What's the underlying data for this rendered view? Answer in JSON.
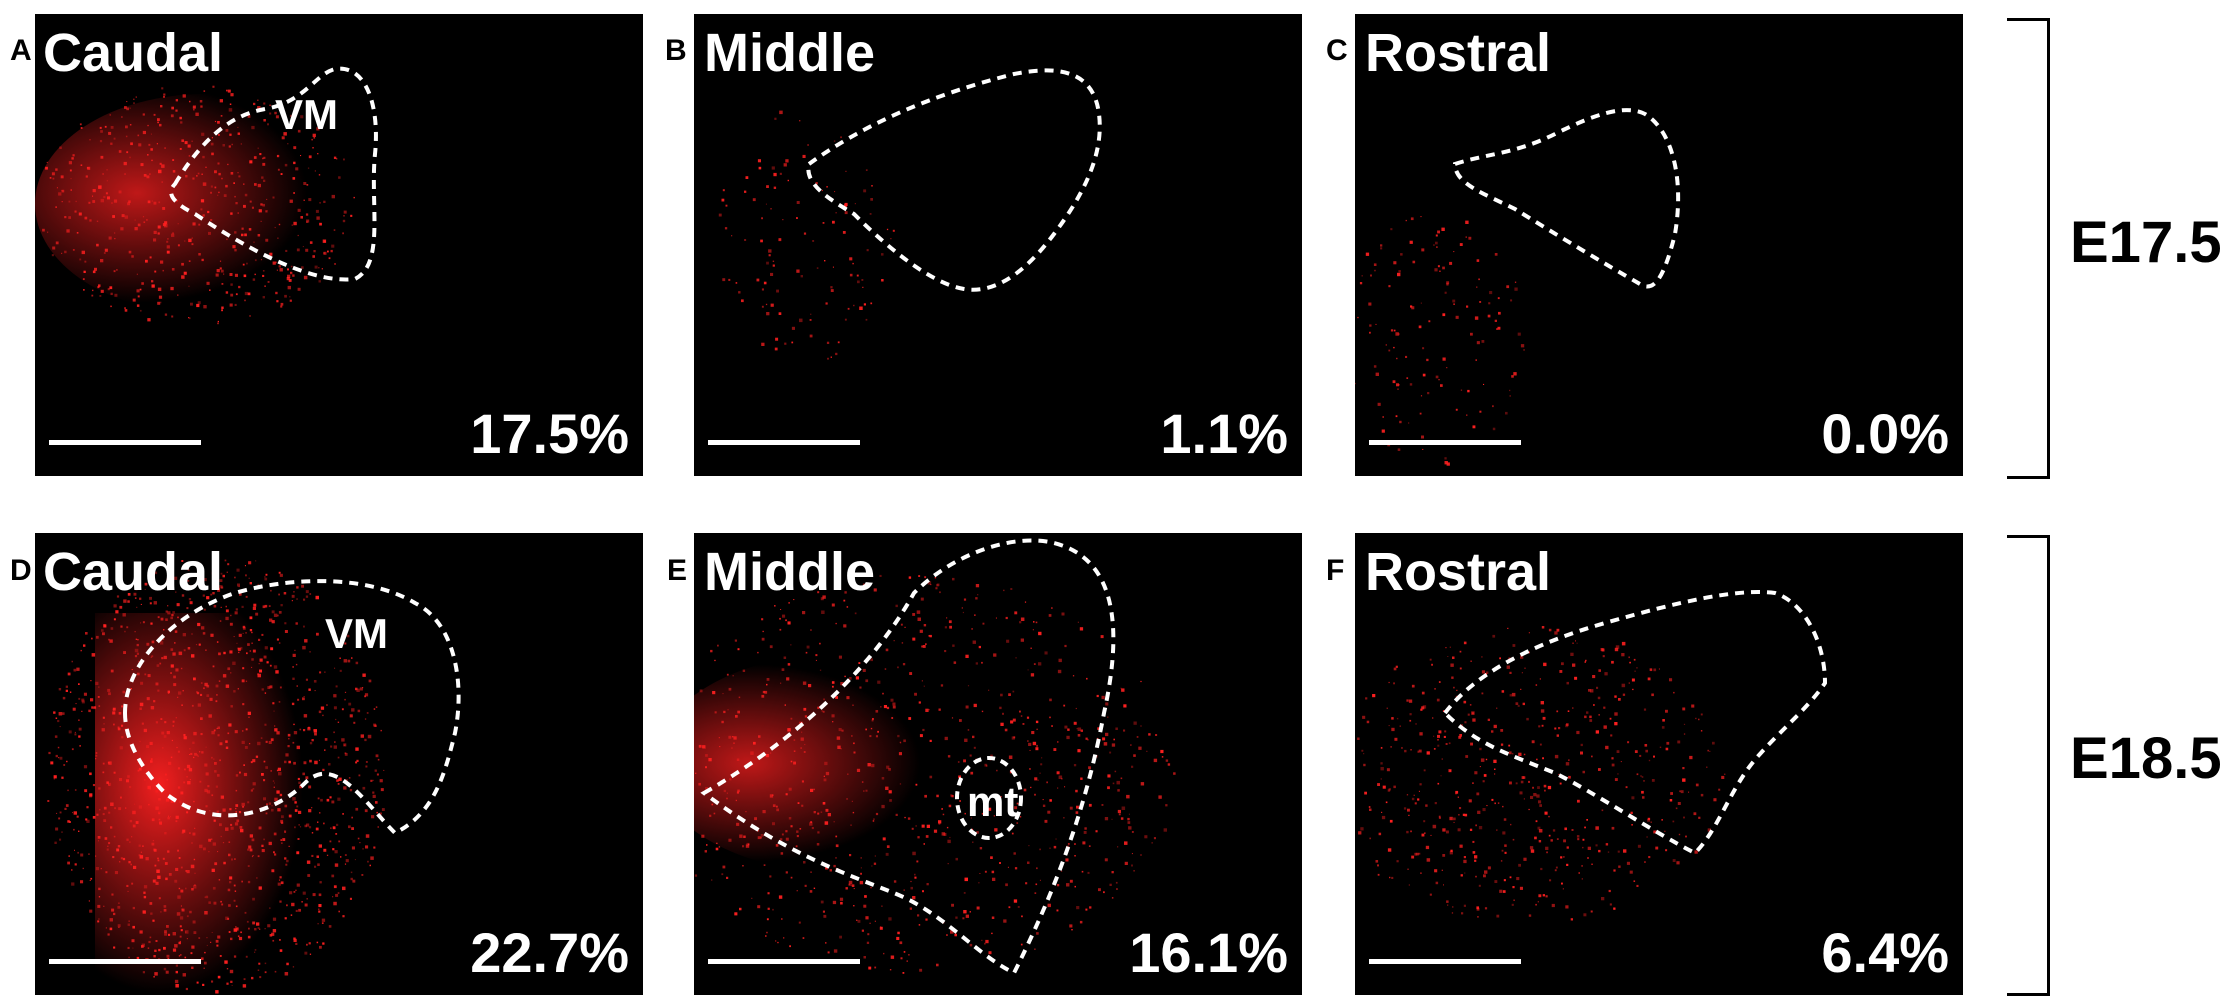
{
  "panels": [
    {
      "letter": "A",
      "region": "Caudal",
      "nucleus": "VM",
      "percent": "17.5%"
    },
    {
      "letter": "B",
      "region": "Middle",
      "nucleus": "",
      "percent": "1.1%"
    },
    {
      "letter": "C",
      "region": "Rostral",
      "nucleus": "",
      "percent": "0.0%"
    },
    {
      "letter": "D",
      "region": "Caudal",
      "nucleus": "VM",
      "percent": "22.7%"
    },
    {
      "letter": "E",
      "region": "Middle",
      "nucleus": "mt",
      "percent": "16.1%"
    },
    {
      "letter": "F",
      "region": "Rostral",
      "nucleus": "",
      "percent": "6.4%"
    }
  ],
  "stages": [
    {
      "label": "E17.5"
    },
    {
      "label": "E18.5"
    }
  ],
  "colors": {
    "signal": "#ff2020",
    "outline": "#ffffff",
    "background": "#000000"
  }
}
